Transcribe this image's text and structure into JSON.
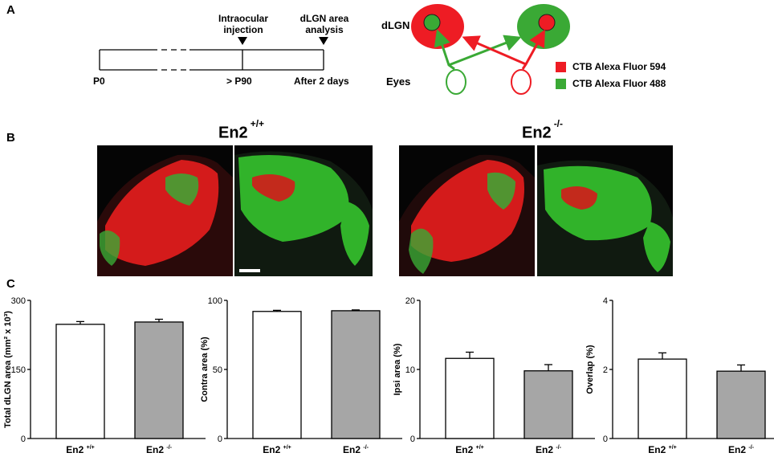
{
  "panels": {
    "a": "A",
    "b": "B",
    "c": "C"
  },
  "timeline": {
    "start": "P0",
    "injection_title_line1": "Intraocular",
    "injection_title_line2": "injection",
    "injection_label": "> P90",
    "analysis_title_line1": "dLGN area",
    "analysis_title_line2": "analysis",
    "analysis_label": "After 2 days"
  },
  "schematic": {
    "dlgn_label": "dLGN",
    "eyes_label": "Eyes",
    "left_dlgn_color": "#ee1c24",
    "right_dlgn_color": "#3aa935",
    "legend": [
      {
        "label": "CTB Alexa Fluor 594",
        "color": "#ee1c24"
      },
      {
        "label": "CTB Alexa Fluor 488",
        "color": "#3aa935"
      }
    ]
  },
  "genotypes": {
    "wt": {
      "name": "En2",
      "sup": "+/+"
    },
    "ko": {
      "name": "En2",
      "sup": "-/-"
    }
  },
  "chart_data": [
    {
      "type": "bar",
      "ylabel": "Total dLGN area (mm² x 10³)",
      "categories": [
        "En2 +/+",
        "En2 -/-"
      ],
      "values": [
        248,
        253
      ],
      "errors": [
        6,
        6
      ],
      "ylim": [
        0,
        300
      ],
      "yticks": [
        0,
        150,
        300
      ],
      "colors": [
        "#ffffff",
        "#a6a6a6"
      ]
    },
    {
      "type": "bar",
      "ylabel": "Contra area (%)",
      "categories": [
        "En2 +/+",
        "En2 -/-"
      ],
      "values": [
        92,
        92.5
      ],
      "errors": [
        0.8,
        0.6
      ],
      "ylim": [
        0,
        100
      ],
      "yticks": [
        0,
        50,
        100
      ],
      "colors": [
        "#ffffff",
        "#a6a6a6"
      ]
    },
    {
      "type": "bar",
      "ylabel": "Ipsi area (%)",
      "categories": [
        "En2 +/+",
        "En2 -/-"
      ],
      "values": [
        11.6,
        9.8
      ],
      "errors": [
        0.9,
        0.9
      ],
      "ylim": [
        0,
        20
      ],
      "yticks": [
        0,
        10,
        20
      ],
      "colors": [
        "#ffffff",
        "#a6a6a6"
      ]
    },
    {
      "type": "bar",
      "ylabel": "Overlap (%)",
      "categories": [
        "En2 +/+",
        "En2 -/-"
      ],
      "values": [
        2.3,
        1.95
      ],
      "errors": [
        0.18,
        0.18
      ],
      "ylim": [
        0,
        4
      ],
      "yticks": [
        0,
        2,
        4
      ],
      "colors": [
        "#ffffff",
        "#a6a6a6"
      ]
    }
  ]
}
